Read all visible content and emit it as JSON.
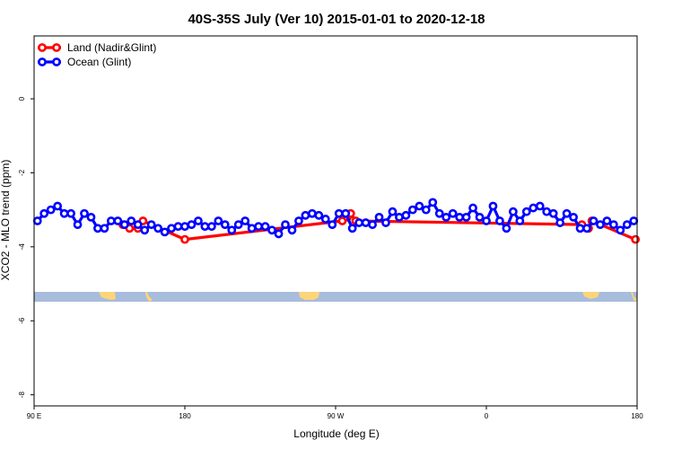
{
  "chart_data": {
    "type": "line",
    "title": "40S-35S July (Ver 10)   2015-01-01 to 2020-12-18",
    "xlabel": "Longitude (deg E)",
    "ylabel": "XCO2 - MLO trend (ppm)",
    "xlim": [
      90,
      450
    ],
    "ylim": [
      -8.3,
      1.7
    ],
    "x_ticks": [
      {
        "value": 90,
        "label": "90 E"
      },
      {
        "value": 180,
        "label": "180"
      },
      {
        "value": 270,
        "label": "90 W"
      },
      {
        "value": 360,
        "label": "0"
      },
      {
        "value": 450,
        "label": "180"
      }
    ],
    "x_ticks_secondary": [
      {
        "value": 450,
        "label": "90 E"
      }
    ],
    "y_ticks": [
      {
        "value": 0,
        "label": "0"
      },
      {
        "value": -2,
        "label": "-2"
      },
      {
        "value": -4,
        "label": "-4"
      },
      {
        "value": -6,
        "label": "-6"
      },
      {
        "value": -8,
        "label": "-8"
      }
    ],
    "grid": false,
    "legend_position": "top-left",
    "series": [
      {
        "name": "Land (Nadir&Glint)",
        "color": "#ff0000",
        "x": [
          143,
          147,
          152,
          155,
          180,
          274,
          277,
          279,
          282,
          417,
          421,
          423,
          449
        ],
        "y": [
          -3.4,
          -3.5,
          -3.5,
          -3.3,
          -3.8,
          -3.3,
          -3.2,
          -3.1,
          -3.3,
          -3.4,
          -3.5,
          -3.3,
          -3.8
        ]
      },
      {
        "name": "Ocean (Glint)",
        "color": "#0000ff",
        "x": [
          92,
          96,
          100,
          104,
          108,
          112,
          116,
          120,
          124,
          128,
          132,
          136,
          140,
          144,
          148,
          152,
          156,
          160,
          164,
          168,
          172,
          176,
          180,
          184,
          188,
          192,
          196,
          200,
          204,
          208,
          212,
          216,
          220,
          224,
          228,
          232,
          236,
          240,
          244,
          248,
          252,
          256,
          260,
          264,
          268,
          272,
          276,
          280,
          284,
          288,
          292,
          296,
          300,
          304,
          308,
          312,
          316,
          320,
          324,
          328,
          332,
          336,
          340,
          344,
          348,
          352,
          356,
          360,
          364,
          368,
          372,
          376,
          380,
          384,
          388,
          392,
          396,
          400,
          404,
          408,
          412,
          416,
          420,
          424,
          428,
          432,
          436,
          440,
          444,
          448
        ],
        "y": [
          -3.3,
          -3.1,
          -3.0,
          -2.9,
          -3.1,
          -3.1,
          -3.4,
          -3.1,
          -3.2,
          -3.5,
          -3.5,
          -3.3,
          -3.3,
          -3.4,
          -3.3,
          -3.4,
          -3.55,
          -3.4,
          -3.5,
          -3.6,
          -3.5,
          -3.45,
          -3.45,
          -3.4,
          -3.3,
          -3.45,
          -3.45,
          -3.3,
          -3.4,
          -3.55,
          -3.4,
          -3.3,
          -3.5,
          -3.45,
          -3.45,
          -3.55,
          -3.65,
          -3.4,
          -3.55,
          -3.3,
          -3.15,
          -3.1,
          -3.15,
          -3.25,
          -3.4,
          -3.1,
          -3.1,
          -3.5,
          -3.35,
          -3.35,
          -3.4,
          -3.2,
          -3.35,
          -3.05,
          -3.2,
          -3.15,
          -3.0,
          -2.9,
          -3.0,
          -2.8,
          -3.1,
          -3.2,
          -3.1,
          -3.2,
          -3.2,
          -2.95,
          -3.2,
          -3.3,
          -2.9,
          -3.3,
          -3.5,
          -3.05,
          -3.3,
          -3.05,
          -2.95,
          -2.9,
          -3.05,
          -3.1,
          -3.35,
          -3.1,
          -3.2,
          -3.5,
          -3.5,
          -3.3,
          -3.4,
          -3.3,
          -3.4,
          -3.55,
          -3.4,
          -3.3
        ]
      }
    ]
  }
}
